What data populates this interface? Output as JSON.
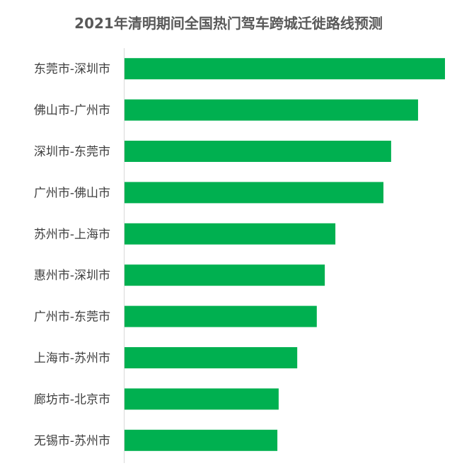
{
  "chart_data": {
    "type": "bar",
    "orientation": "horizontal",
    "title": "2021年清明期间全国热门驾车跨城迁徙路线预测",
    "categories": [
      "东莞市-深圳市",
      "佛山市-广州市",
      "深圳市-东莞市",
      "广州市-佛山市",
      "苏州市-上海市",
      "惠州市-深圳市",
      "广州市-东莞市",
      "上海市-苏州市",
      "廊坊市-北京市",
      "无锡市-苏州市"
    ],
    "values": [
      100,
      91.6,
      83.2,
      80.8,
      65.8,
      62.5,
      60.0,
      53.9,
      48.1,
      47.7
    ],
    "value_unit": "relative (% of largest bar; no value axis shown)",
    "xlim": [
      0,
      100
    ],
    "grid": false,
    "value_axis_visible": false,
    "bar_color": "#00b050",
    "axis_color": "#d9d9d9"
  }
}
